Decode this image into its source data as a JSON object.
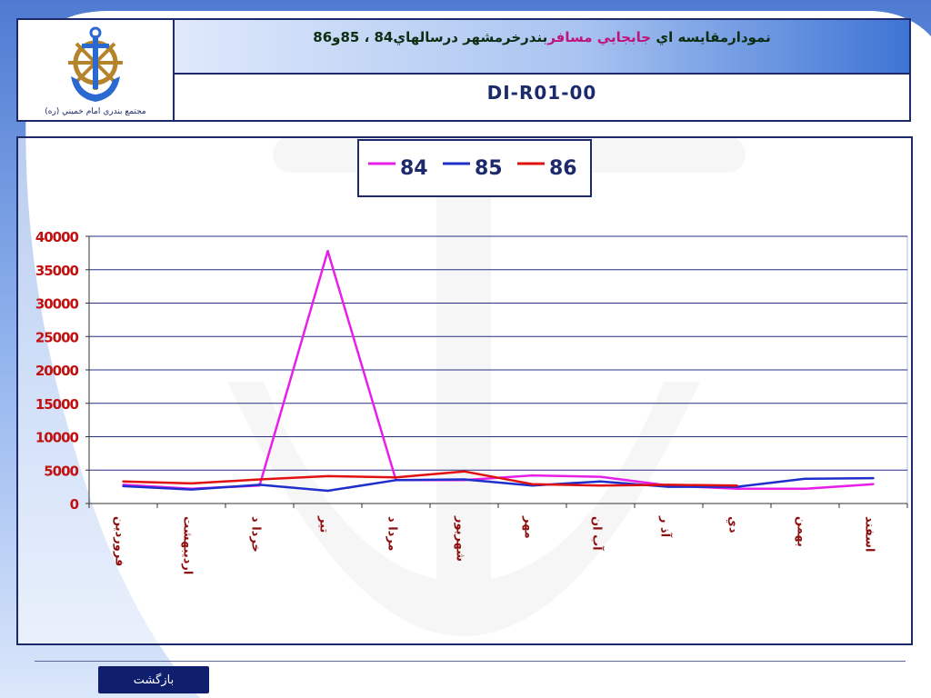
{
  "header": {
    "title_part1": "نمودارمقايسه اي",
    "title_highlight": "جابجايي مسافر",
    "title_part2": "بندرخرمشهر درسالهاي84 ، 85و86",
    "doc_code": "DI-R01-00",
    "logo_caption": "مجتمع بندري امام خميني (ره)"
  },
  "footer": {
    "back_label": "بازگشت"
  },
  "colors": {
    "s84": "#e81fe8",
    "s85": "#1f2fcc",
    "s86": "#e01010",
    "frame": "#1c2a6b"
  },
  "chart_data": {
    "type": "line",
    "categories": [
      "فروردين",
      "ارديبهشت",
      "خرداد",
      "تير",
      "مرداد",
      "شهريور",
      "مهر",
      "آبان",
      "آذر",
      "دي",
      "بهمن",
      "اسفند"
    ],
    "category_labels": [
      "فروردين",
      "ارديبهشت",
      "خردا د",
      "تير",
      "مردا د",
      "شهريور",
      "مهر",
      "آب ان",
      "آذ ر",
      "دي",
      "بهمن",
      "اسفند"
    ],
    "y_ticks": [
      "40000",
      "35000",
      "30000",
      "25000",
      "20000",
      "15000",
      "10000",
      "5000",
      "0"
    ],
    "ylim": [
      0,
      40000
    ],
    "grid": true,
    "legend_position": "top",
    "series": [
      {
        "name": "84",
        "values": [
          2800,
          2200,
          2700,
          37800,
          3500,
          3500,
          4200,
          4000,
          2700,
          2200,
          2200,
          2900
        ]
      },
      {
        "name": "85",
        "values": [
          2600,
          2100,
          2800,
          1900,
          3500,
          3600,
          2700,
          3300,
          2500,
          2500,
          3700,
          3800
        ]
      },
      {
        "name": "86",
        "values": [
          3300,
          3000,
          3600,
          4100,
          3900,
          4800,
          2900,
          2700,
          2800,
          2700,
          null,
          null
        ]
      }
    ]
  }
}
